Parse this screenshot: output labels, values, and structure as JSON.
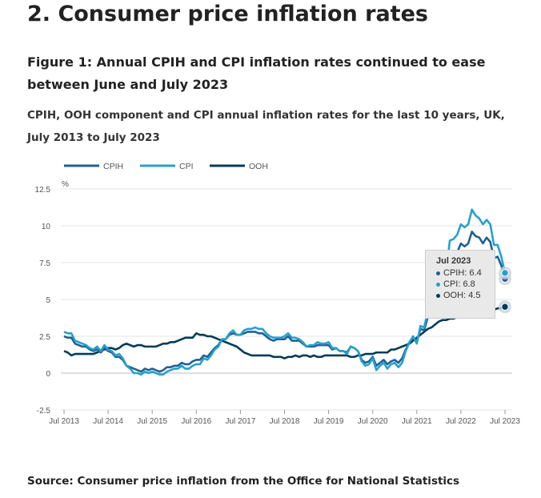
{
  "heading": "2.  Consumer price inflation rates",
  "figure_title": "Figure 1: Annual CPIH and CPI inflation rates continued to ease between June and July 2023",
  "subtitle": "CPIH, OOH component and CPI annual inflation rates for the last 10 years, UK, July 2013 to July 2023",
  "source": "Source: Consumer price inflation from the Office for National Statistics",
  "tooltip": {
    "title": "Jul 2023",
    "items": [
      {
        "label": "CPIH: 6.4",
        "color": "#206095"
      },
      {
        "label": "CPI: 6.8",
        "color": "#27a0cc"
      },
      {
        "label": "OOH: 4.5",
        "color": "#003c57"
      }
    ]
  },
  "chart_data": {
    "type": "line",
    "ylabel": "%",
    "ylim": [
      -2.5,
      12.5
    ],
    "yticks": [
      "12.5",
      "10",
      "7.5",
      "5",
      "2.5",
      "0",
      "-2.5"
    ],
    "xticks": [
      "Jul 2013",
      "Jul 2014",
      "Jul 2015",
      "Jul 2016",
      "Jul 2017",
      "Jul 2018",
      "Jul 2019",
      "Jul 2020",
      "Jul 2021",
      "Jul 2022",
      "Jul 2023"
    ],
    "x_start": "Jul 2013",
    "x_end": "Jul 2023",
    "frequency": "monthly",
    "grid": true,
    "legend": "top-left",
    "series": [
      {
        "name": "CPIH",
        "color": "#206095",
        "values": [
          2.5,
          2.4,
          2.4,
          2.0,
          1.9,
          1.8,
          1.8,
          1.6,
          1.5,
          1.6,
          1.4,
          1.7,
          1.5,
          1.4,
          1.1,
          1.1,
          0.9,
          0.5,
          0.4,
          0.3,
          0.2,
          0.1,
          0.3,
          0.2,
          0.3,
          0.2,
          0.1,
          0.2,
          0.4,
          0.4,
          0.5,
          0.5,
          0.7,
          0.6,
          0.6,
          0.8,
          0.9,
          0.9,
          1.2,
          1.1,
          1.4,
          1.7,
          1.9,
          2.3,
          2.3,
          2.6,
          2.7,
          2.6,
          2.6,
          2.7,
          2.8,
          2.8,
          2.8,
          2.7,
          2.7,
          2.5,
          2.3,
          2.2,
          2.3,
          2.3,
          2.3,
          2.5,
          2.2,
          2.2,
          2.2,
          2.0,
          1.8,
          1.8,
          1.8,
          1.9,
          1.9,
          1.9,
          1.9,
          1.6,
          1.7,
          1.5,
          1.5,
          1.4,
          1.8,
          1.7,
          1.5,
          0.9,
          0.7,
          0.8,
          1.1,
          0.5,
          0.7,
          0.9,
          0.6,
          0.8,
          0.9,
          0.7,
          1.0,
          1.6,
          2.1,
          2.4,
          2.1,
          3.0,
          2.9,
          3.8,
          4.6,
          4.8,
          4.9,
          5.5,
          6.2,
          7.8,
          7.9,
          8.2,
          8.8,
          8.6,
          8.8,
          9.6,
          9.3,
          9.2,
          8.8,
          9.2,
          8.9,
          7.8,
          7.9,
          7.3,
          6.4
        ]
      },
      {
        "name": "CPI",
        "color": "#27a0cc",
        "values": [
          2.8,
          2.7,
          2.7,
          2.2,
          2.1,
          2.0,
          1.9,
          1.7,
          1.6,
          1.8,
          1.5,
          1.9,
          1.6,
          1.5,
          1.2,
          1.3,
          1.0,
          0.5,
          0.3,
          0.0,
          0.0,
          -0.1,
          0.1,
          0.0,
          0.1,
          0.0,
          -0.1,
          -0.1,
          0.1,
          0.2,
          0.3,
          0.3,
          0.5,
          0.3,
          0.3,
          0.5,
          0.6,
          0.6,
          1.0,
          0.9,
          1.2,
          1.6,
          1.8,
          2.3,
          2.3,
          2.7,
          2.9,
          2.6,
          2.6,
          2.9,
          3.0,
          3.0,
          3.1,
          3.0,
          3.0,
          2.7,
          2.5,
          2.4,
          2.4,
          2.4,
          2.5,
          2.7,
          2.4,
          2.4,
          2.3,
          2.1,
          1.8,
          1.9,
          1.9,
          2.1,
          2.0,
          2.0,
          2.1,
          1.7,
          1.7,
          1.5,
          1.5,
          1.3,
          1.8,
          1.7,
          1.5,
          0.8,
          0.5,
          0.6,
          1.0,
          0.2,
          0.5,
          0.7,
          0.3,
          0.6,
          0.7,
          0.4,
          0.7,
          1.5,
          2.1,
          2.5,
          2.0,
          3.2,
          3.1,
          4.2,
          5.1,
          5.4,
          5.5,
          6.2,
          7.0,
          9.0,
          9.1,
          9.4,
          10.1,
          9.9,
          10.1,
          11.1,
          10.7,
          10.5,
          10.1,
          10.4,
          10.1,
          8.7,
          8.7,
          7.9,
          6.8
        ]
      },
      {
        "name": "OOH",
        "color": "#003c57",
        "values": [
          1.5,
          1.4,
          1.2,
          1.3,
          1.3,
          1.3,
          1.3,
          1.3,
          1.3,
          1.4,
          1.5,
          1.6,
          1.7,
          1.7,
          1.6,
          1.7,
          1.9,
          2.0,
          1.9,
          1.8,
          1.9,
          1.9,
          1.8,
          1.8,
          1.8,
          1.8,
          1.9,
          2.0,
          2.0,
          2.1,
          2.1,
          2.2,
          2.3,
          2.4,
          2.4,
          2.4,
          2.7,
          2.6,
          2.6,
          2.5,
          2.5,
          2.4,
          2.3,
          2.2,
          2.1,
          2.0,
          1.9,
          1.8,
          1.6,
          1.4,
          1.3,
          1.2,
          1.2,
          1.2,
          1.2,
          1.2,
          1.2,
          1.1,
          1.1,
          1.1,
          1.0,
          1.1,
          1.1,
          1.2,
          1.1,
          1.2,
          1.2,
          1.1,
          1.2,
          1.1,
          1.1,
          1.2,
          1.2,
          1.2,
          1.2,
          1.2,
          1.2,
          1.2,
          1.1,
          1.1,
          1.2,
          1.2,
          1.3,
          1.3,
          1.3,
          1.4,
          1.4,
          1.4,
          1.4,
          1.6,
          1.6,
          1.7,
          1.8,
          1.9,
          2.0,
          2.2,
          2.4,
          2.6,
          2.8,
          3.0,
          3.1,
          3.3,
          3.5,
          3.6,
          3.6,
          3.7,
          3.7,
          3.8,
          3.8,
          3.8,
          3.8,
          3.8,
          3.8,
          3.9,
          3.9,
          4.0,
          4.1,
          4.3,
          4.4,
          4.4,
          4.5
        ]
      }
    ]
  }
}
